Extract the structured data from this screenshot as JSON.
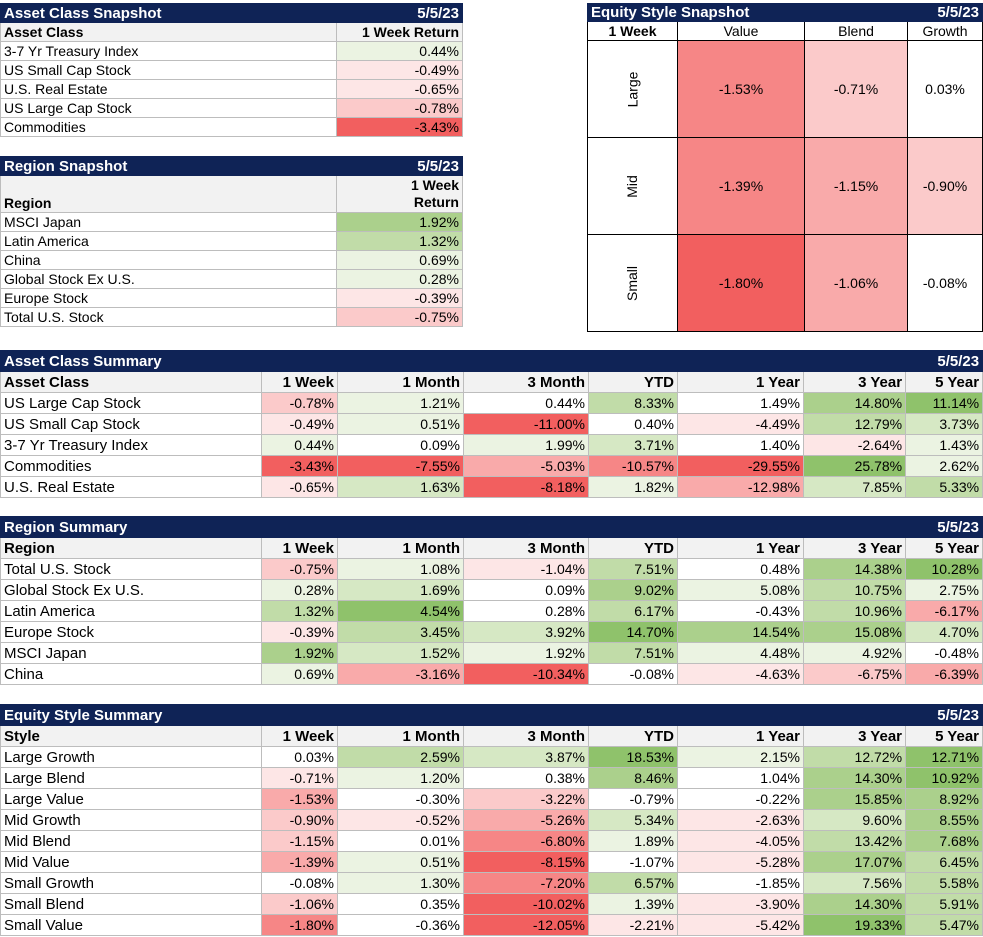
{
  "colors": {
    "header_bg": "#0f2356",
    "pos": [
      "#ffffff",
      "#ebf3e2",
      "#d6e8c4",
      "#c1dca8",
      "#abd08c",
      "#8fc26b"
    ],
    "neg": [
      "#ffffff",
      "#fde6e6",
      "#fbcaca",
      "#f9aaaa",
      "#f68686",
      "#f25f5f"
    ]
  },
  "asset_class_snapshot": {
    "title": "Asset Class Snapshot",
    "date": "5/5/23",
    "col_label": "Asset Class",
    "col_value": "1 Week Return",
    "rows": [
      {
        "label": "3-7 Yr Treasury Index",
        "value": "0.44%",
        "n": 0.44
      },
      {
        "label": "US Small Cap Stock",
        "value": "-0.49%",
        "n": -0.49
      },
      {
        "label": "U.S. Real Estate",
        "value": "-0.65%",
        "n": -0.65
      },
      {
        "label": "US Large Cap Stock",
        "value": "-0.78%",
        "n": -0.78
      },
      {
        "label": "Commodities",
        "value": "-3.43%",
        "n": -3.43
      }
    ]
  },
  "region_snapshot": {
    "title": "Region Snapshot",
    "date": "5/5/23",
    "col_label": "Region",
    "col_value_1": "1 Week",
    "col_value_2": "Return",
    "rows": [
      {
        "label": "MSCI Japan",
        "value": "1.92%",
        "n": 1.92
      },
      {
        "label": "Latin America",
        "value": "1.32%",
        "n": 1.32
      },
      {
        "label": "China",
        "value": "0.69%",
        "n": 0.69
      },
      {
        "label": "Global Stock Ex U.S.",
        "value": "0.28%",
        "n": 0.28
      },
      {
        "label": "Europe Stock",
        "value": "-0.39%",
        "n": -0.39
      },
      {
        "label": "Total U.S. Stock",
        "value": "-0.75%",
        "n": -0.75
      }
    ]
  },
  "equity_style_snapshot": {
    "title": "Equity Style Snapshot",
    "date": "5/5/23",
    "corner": "1 Week",
    "cols": [
      "Value",
      "Blend",
      "Growth"
    ],
    "rows": [
      {
        "label": "Large",
        "cells": [
          {
            "value": "-1.53%",
            "n": -1.53
          },
          {
            "value": "-0.71%",
            "n": -0.71
          },
          {
            "value": "0.03%",
            "n": 0.03
          }
        ]
      },
      {
        "label": "Mid",
        "cells": [
          {
            "value": "-1.39%",
            "n": -1.39
          },
          {
            "value": "-1.15%",
            "n": -1.15
          },
          {
            "value": "-0.90%",
            "n": -0.9
          }
        ]
      },
      {
        "label": "Small",
        "cells": [
          {
            "value": "-1.80%",
            "n": -1.8
          },
          {
            "value": "-1.06%",
            "n": -1.06
          },
          {
            "value": "-0.08%",
            "n": -0.08
          }
        ]
      }
    ]
  },
  "summary_columns": [
    "1 Week",
    "1 Month",
    "3 Month",
    "YTD",
    "1 Year",
    "3 Year",
    "5 Year"
  ],
  "asset_class_summary": {
    "title": "Asset Class Summary",
    "date": "5/5/23",
    "col_label": "Asset Class",
    "rows": [
      {
        "label": "US Large Cap Stock",
        "values": [
          "-0.78%",
          "1.21%",
          "0.44%",
          "8.33%",
          "1.49%",
          "14.80%",
          "11.14%"
        ]
      },
      {
        "label": "US Small Cap Stock",
        "values": [
          "-0.49%",
          "0.51%",
          "-11.00%",
          "0.40%",
          "-4.49%",
          "12.79%",
          "3.73%"
        ]
      },
      {
        "label": "3-7 Yr Treasury Index",
        "values": [
          "0.44%",
          "0.09%",
          "1.99%",
          "3.71%",
          "1.40%",
          "-2.64%",
          "1.43%"
        ]
      },
      {
        "label": "Commodities",
        "values": [
          "-3.43%",
          "-7.55%",
          "-5.03%",
          "-10.57%",
          "-29.55%",
          "25.78%",
          "2.62%"
        ]
      },
      {
        "label": "U.S. Real Estate",
        "values": [
          "-0.65%",
          "1.63%",
          "-8.18%",
          "1.82%",
          "-12.98%",
          "7.85%",
          "5.33%"
        ]
      }
    ]
  },
  "region_summary": {
    "title": "Region Summary",
    "date": "5/5/23",
    "col_label": "Region",
    "rows": [
      {
        "label": "Total U.S. Stock",
        "values": [
          "-0.75%",
          "1.08%",
          "-1.04%",
          "7.51%",
          "0.48%",
          "14.38%",
          "10.28%"
        ]
      },
      {
        "label": "Global Stock Ex U.S.",
        "values": [
          "0.28%",
          "1.69%",
          "0.09%",
          "9.02%",
          "5.08%",
          "10.75%",
          "2.75%"
        ]
      },
      {
        "label": "Latin America",
        "values": [
          "1.32%",
          "4.54%",
          "0.28%",
          "6.17%",
          "-0.43%",
          "10.96%",
          "-6.17%"
        ]
      },
      {
        "label": "Europe Stock",
        "values": [
          "-0.39%",
          "3.45%",
          "3.92%",
          "14.70%",
          "14.54%",
          "15.08%",
          "4.70%"
        ]
      },
      {
        "label": "MSCI Japan",
        "values": [
          "1.92%",
          "1.52%",
          "1.92%",
          "7.51%",
          "4.48%",
          "4.92%",
          "-0.48%"
        ]
      },
      {
        "label": "China",
        "values": [
          "0.69%",
          "-3.16%",
          "-10.34%",
          "-0.08%",
          "-4.63%",
          "-6.75%",
          "-6.39%"
        ]
      }
    ]
  },
  "equity_style_summary": {
    "title": "Equity Style Summary",
    "date": "5/5/23",
    "col_label": "Style",
    "rows": [
      {
        "label": "Large Growth",
        "values": [
          "0.03%",
          "2.59%",
          "3.87%",
          "18.53%",
          "2.15%",
          "12.72%",
          "12.71%"
        ]
      },
      {
        "label": "Large Blend",
        "values": [
          "-0.71%",
          "1.20%",
          "0.38%",
          "8.46%",
          "1.04%",
          "14.30%",
          "10.92%"
        ]
      },
      {
        "label": "Large Value",
        "values": [
          "-1.53%",
          "-0.30%",
          "-3.22%",
          "-0.79%",
          "-0.22%",
          "15.85%",
          "8.92%"
        ]
      },
      {
        "label": "Mid Growth",
        "values": [
          "-0.90%",
          "-0.52%",
          "-5.26%",
          "5.34%",
          "-2.63%",
          "9.60%",
          "8.55%"
        ]
      },
      {
        "label": "Mid Blend",
        "values": [
          "-1.15%",
          "0.01%",
          "-6.80%",
          "1.89%",
          "-4.05%",
          "13.42%",
          "7.68%"
        ]
      },
      {
        "label": "Mid Value",
        "values": [
          "-1.39%",
          "0.51%",
          "-8.15%",
          "-1.07%",
          "-5.28%",
          "17.07%",
          "6.45%"
        ]
      },
      {
        "label": "Small Growth",
        "values": [
          "-0.08%",
          "1.30%",
          "-7.20%",
          "6.57%",
          "-1.85%",
          "7.56%",
          "5.58%"
        ]
      },
      {
        "label": "Small Blend",
        "values": [
          "-1.06%",
          "0.35%",
          "-10.02%",
          "1.39%",
          "-3.90%",
          "14.30%",
          "5.91%"
        ]
      },
      {
        "label": "Small Value",
        "values": [
          "-1.80%",
          "-0.36%",
          "-12.05%",
          "-2.21%",
          "-5.42%",
          "19.33%",
          "5.47%"
        ]
      }
    ]
  }
}
